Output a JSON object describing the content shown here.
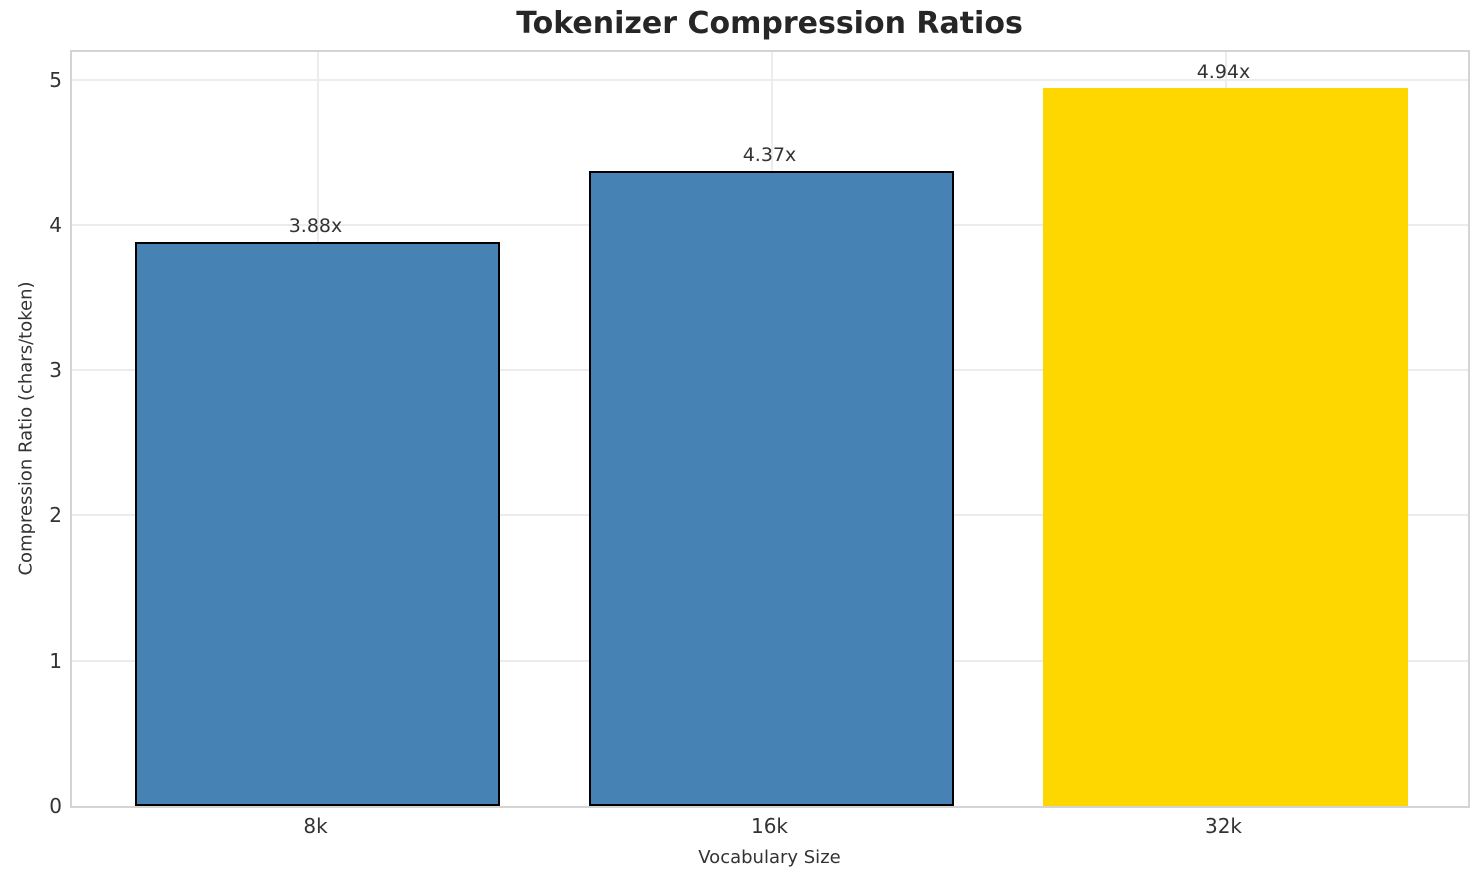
{
  "chart_data": {
    "type": "bar",
    "title": "Tokenizer Compression Ratios",
    "xlabel": "Vocabulary Size",
    "ylabel": "Compression Ratio (chars/token)",
    "categories": [
      "8k",
      "16k",
      "32k"
    ],
    "values": [
      3.88,
      4.37,
      4.94
    ],
    "value_labels": [
      "3.88x",
      "4.37x",
      "4.94x"
    ],
    "yticks": [
      0,
      1,
      2,
      3,
      4,
      5
    ],
    "ytick_labels": [
      "0",
      "1",
      "2",
      "3",
      "4",
      "5"
    ],
    "ylim": [
      0,
      5.19
    ],
    "grid": true,
    "legend_position": "none",
    "colors": {
      "bar_fill": [
        "#4682b4",
        "#4682b4",
        "#ffd700"
      ],
      "bar_edge": [
        "#000000",
        "#000000",
        "none"
      ],
      "grid": "#ececec",
      "spine": "#d4d4d4",
      "title_text": "#262626",
      "tick_text": "#333333"
    }
  }
}
